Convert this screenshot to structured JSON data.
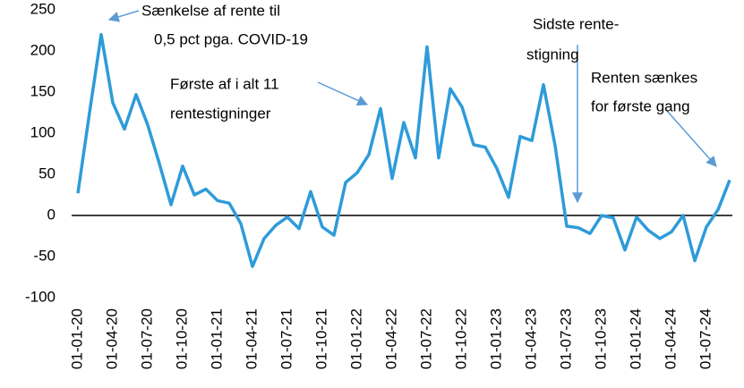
{
  "chart_data": {
    "type": "line",
    "categories": [
      "01-01-20",
      null,
      null,
      "01-04-20",
      null,
      null,
      "01-07-20",
      null,
      null,
      "01-10-20",
      null,
      null,
      "01-01-21",
      null,
      null,
      "01-04-21",
      null,
      null,
      "01-07-21",
      null,
      null,
      "01-10-21",
      null,
      null,
      "01-01-22",
      null,
      null,
      "01-04-22",
      null,
      null,
      "01-07-22",
      null,
      null,
      "01-10-22",
      null,
      null,
      "01-01-23",
      null,
      null,
      "01-04-23",
      null,
      null,
      "01-07-23",
      null,
      null,
      "01-10-23",
      null,
      null,
      "01-01-24",
      null,
      null,
      "01-04-24",
      null,
      null,
      "01-07-24",
      null,
      null
    ],
    "series": [
      {
        "color": "#2e9bd9",
        "values": [
          27,
          125,
          220,
          137,
          105,
          147,
          110,
          63,
          13,
          60,
          25,
          32,
          18,
          15,
          -10,
          -62,
          -28,
          -12,
          -2,
          -16,
          29,
          -14,
          -24,
          40,
          52,
          74,
          130,
          45,
          113,
          70,
          205,
          70,
          154,
          132,
          86,
          83,
          57,
          22,
          96,
          91,
          159,
          85,
          -13,
          -15,
          -22,
          0,
          -3,
          -42,
          -2,
          -18,
          -28,
          -20,
          0,
          -55,
          -14,
          7,
          43
        ]
      }
    ],
    "ylim": [
      -100,
      250
    ],
    "yticks": [
      -100,
      -50,
      0,
      50,
      100,
      150,
      200,
      250
    ],
    "annotations": [
      {
        "lines": [
          "Sænkelse af rente til",
          "0,5 pct pga. COVID-19"
        ]
      },
      {
        "lines": [
          "Første af i alt 11",
          "rentestigninger"
        ]
      },
      {
        "lines": [
          "Sidste rente-",
          "stigning"
        ]
      },
      {
        "lines": [
          "Renten sænkes",
          "for første gang"
        ]
      }
    ]
  }
}
